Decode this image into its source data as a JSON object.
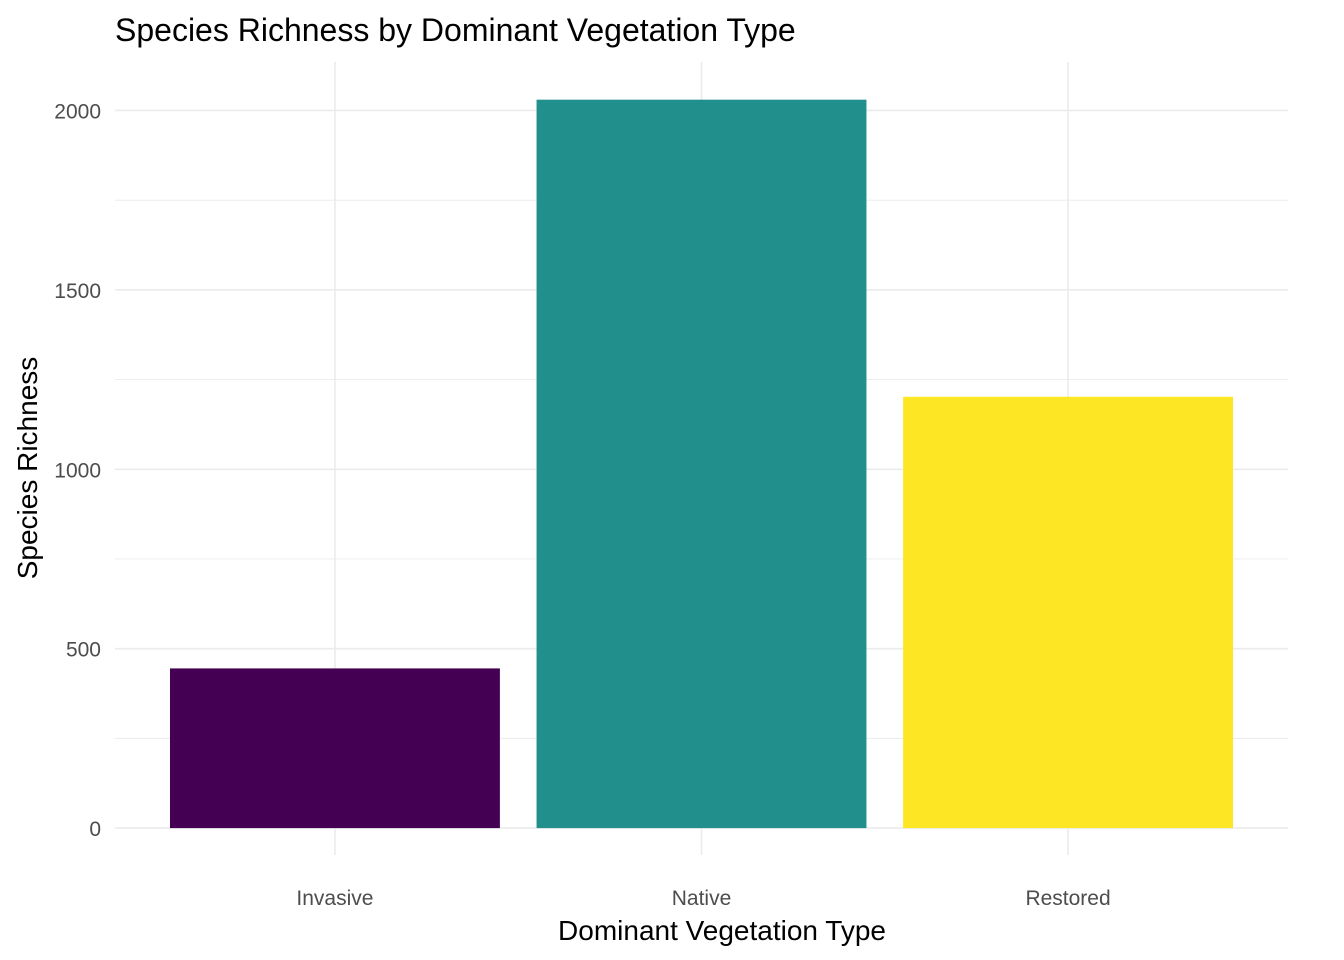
{
  "chart_data": {
    "type": "bar",
    "title": "Species Richness by Dominant Vegetation Type",
    "xlabel": "Dominant Vegetation Type",
    "ylabel": "Species Richness",
    "categories": [
      "Invasive",
      "Native",
      "Restored"
    ],
    "values": [
      445,
      2030,
      1202
    ],
    "colors": [
      "#440154",
      "#21908C",
      "#FDE725"
    ],
    "ylim": [
      -75,
      2135
    ],
    "yticks": [
      0,
      500,
      1000,
      1500,
      2000
    ],
    "ytick_labels": [
      "0",
      "500",
      "1000",
      "1500",
      "2000"
    ],
    "grid": true,
    "legend": "none"
  }
}
